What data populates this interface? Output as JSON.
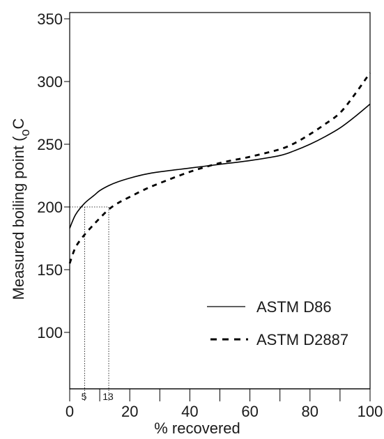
{
  "chart_data": {
    "type": "line",
    "title": "",
    "xlabel": "% recovered",
    "ylabel_text": "Measured boiling point (",
    "ylabel_unit_main": "C",
    "ylabel_unit_sub": "o",
    "xlim": [
      0,
      100
    ],
    "ylim": [
      55,
      355
    ],
    "x_ticks_labeled": [
      0,
      20,
      40,
      60,
      80,
      100
    ],
    "x_ticks_minor": [
      10,
      30,
      50,
      70,
      90
    ],
    "y_ticks_labeled": [
      100,
      150,
      200,
      250,
      300,
      350
    ],
    "grid": false,
    "legend_position": "bottom-right",
    "series": [
      {
        "name": "ASTM D86",
        "style": "solid",
        "color": "#000000",
        "x": [
          0,
          2,
          5,
          8,
          10,
          13,
          16,
          20,
          25,
          30,
          40,
          50,
          60,
          70,
          75,
          80,
          85,
          90,
          95,
          100
        ],
        "y": [
          183,
          194,
          203,
          209,
          213,
          217,
          220,
          223,
          226,
          228,
          231,
          234,
          237,
          241,
          245,
          250,
          256,
          263,
          272,
          282
        ]
      },
      {
        "name": "ASTM D2887",
        "style": "dashed",
        "color": "#000000",
        "x": [
          0,
          2,
          5,
          8,
          10,
          13,
          16,
          20,
          25,
          30,
          40,
          50,
          60,
          70,
          75,
          80,
          85,
          90,
          95,
          100
        ],
        "y": [
          155,
          168,
          178,
          186,
          191,
          198,
          203,
          208,
          214,
          219,
          228,
          235,
          240,
          246,
          251,
          258,
          266,
          275,
          290,
          307
        ]
      }
    ],
    "annotations": [
      {
        "name": "annotation-5",
        "label": "5",
        "x": 5,
        "y": 200
      },
      {
        "name": "annotation-13",
        "label": "13",
        "x": 13,
        "y": 200
      }
    ]
  }
}
